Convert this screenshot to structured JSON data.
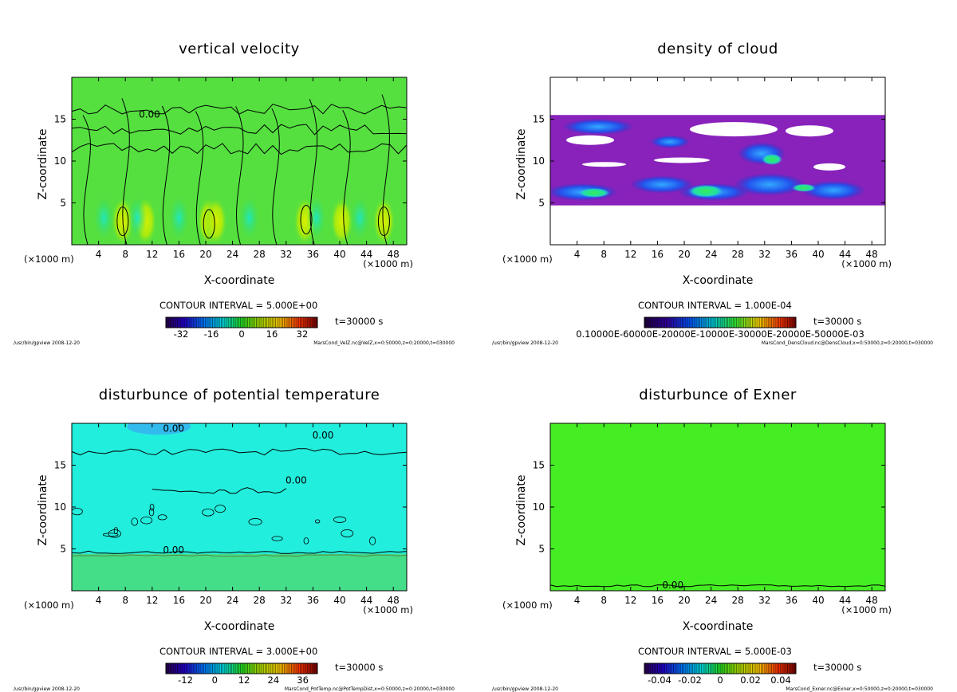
{
  "time_label": "t=30000 s",
  "panels": [
    {
      "title": "vertical velocity",
      "field": "green",
      "x_label": "X-coordinate",
      "z_label": "Z-coordinate",
      "x_ticks": [
        "4",
        "8",
        "12",
        "16",
        "20",
        "24",
        "28",
        "32",
        "36",
        "40",
        "44",
        "48"
      ],
      "z_ticks": [
        "5",
        "10",
        "15"
      ],
      "unit_left": "(×1000 m)",
      "unit_right": "(×1000 m)",
      "contour_interval": "CONTOUR INTERVAL = 5.000E+00",
      "colorbar_labels": [
        "-32",
        "-16",
        "0",
        "16",
        "32"
      ],
      "colorbar_range": [
        -40,
        40
      ],
      "contour_label": "0.00",
      "footer_left": "/usr/bin/gpview  2008-12-20",
      "footer_right": "MarsCond_VelZ.nc@VelZ,x=0:50000,z=0:20000,t=030000"
    },
    {
      "title": "density of cloud",
      "field": "cloud",
      "x_label": "X-coordinate",
      "z_label": "Z-coordinate",
      "x_ticks": [
        "4",
        "8",
        "12",
        "16",
        "20",
        "24",
        "28",
        "32",
        "36",
        "40",
        "44",
        "48"
      ],
      "z_ticks": [
        "5",
        "10",
        "15"
      ],
      "unit_left": "(×1000 m)",
      "unit_right": "(×1000 m)",
      "contour_interval": "CONTOUR INTERVAL = 1.000E-04",
      "colorbar_labels": [
        "0.10000E-60000E-20000E-10000E-30000E-20000E-50000E-03"
      ],
      "colorbar_range": [
        0,
        1
      ],
      "contour_label": "",
      "footer_left": "/usr/bin/gpview  2008-12-20",
      "footer_right": "MarsCond_DensCloud.nc@DensCloud,x=0:50000,z=0:20000,t=030000"
    },
    {
      "title": "disturbunce of potential temperature",
      "field": "cyan",
      "x_label": "X-coordinate",
      "z_label": "Z-coordinate",
      "x_ticks": [
        "4",
        "8",
        "12",
        "16",
        "20",
        "24",
        "28",
        "32",
        "36",
        "40",
        "44",
        "48"
      ],
      "z_ticks": [
        "5",
        "10",
        "15"
      ],
      "unit_left": "(×1000 m)",
      "unit_right": "(×1000 m)",
      "contour_interval": "CONTOUR INTERVAL = 3.000E+00",
      "colorbar_labels": [
        "-12",
        "0",
        "12",
        "24",
        "36"
      ],
      "colorbar_range": [
        -20,
        42
      ],
      "contour_label": "0.00",
      "footer_left": "/usr/bin/gpview  2008-12-20",
      "footer_right": "MarsCond_PotTemp.nc@PotTempDist,x=0:50000,z=0:20000,t=030000"
    },
    {
      "title": "disturbunce of Exner",
      "field": "flatgreen",
      "x_label": "X-coordinate",
      "z_label": "Z-coordinate",
      "x_ticks": [
        "4",
        "8",
        "12",
        "16",
        "20",
        "24",
        "28",
        "32",
        "36",
        "40",
        "44",
        "48"
      ],
      "z_ticks": [
        "5",
        "10",
        "15"
      ],
      "unit_left": "(×1000 m)",
      "unit_right": "(×1000 m)",
      "contour_interval": "CONTOUR INTERVAL = 5.000E-03",
      "colorbar_labels": [
        "-0.04",
        "-0.02",
        "0",
        "0.02",
        "0.04"
      ],
      "colorbar_range": [
        -0.05,
        0.05
      ],
      "contour_label": "0.00",
      "footer_left": "/usr/bin/gpview  2008-12-20",
      "footer_right": "MarsCond_Exner.nc@Exner,x=0:50000,z=0:20000,t=030000"
    }
  ],
  "chart_data": [
    {
      "type": "heatmap",
      "title": "vertical velocity",
      "xlabel": "X-coordinate",
      "ylabel": "Z-coordinate",
      "xlim": [
        0,
        50
      ],
      "ylim": [
        0,
        20
      ],
      "x_ticks": [
        4,
        8,
        12,
        16,
        20,
        24,
        28,
        32,
        36,
        40,
        44,
        48
      ],
      "y_ticks": [
        5,
        10,
        15
      ],
      "x_unit": "(×1000 m)",
      "y_unit": "(×1000 m)",
      "contour_interval": 5.0,
      "colorbar": {
        "ticks": [
          -32,
          -16,
          0,
          16,
          32
        ],
        "range": [
          -40,
          40
        ]
      },
      "annotations": [
        "0.00"
      ]
    },
    {
      "type": "heatmap",
      "title": "density of cloud",
      "xlabel": "X-coordinate",
      "ylabel": "Z-coordinate",
      "xlim": [
        0,
        50
      ],
      "ylim": [
        0,
        20
      ],
      "x_ticks": [
        4,
        8,
        12,
        16,
        20,
        24,
        28,
        32,
        36,
        40,
        44,
        48
      ],
      "y_ticks": [
        5,
        10,
        15
      ],
      "x_unit": "(×1000 m)",
      "y_unit": "(×1000 m)",
      "contour_interval": 0.0001,
      "colorbar": {
        "ticks": [
          "0.10000E-60000E-20000E-10000E-30000E-20000E-50000E-03"
        ]
      },
      "cloud_layer_z_range": [
        5,
        15.5
      ]
    },
    {
      "type": "heatmap",
      "title": "disturbunce of potential temperature",
      "xlabel": "X-coordinate",
      "ylabel": "Z-coordinate",
      "xlim": [
        0,
        50
      ],
      "ylim": [
        0,
        20
      ],
      "x_ticks": [
        4,
        8,
        12,
        16,
        20,
        24,
        28,
        32,
        36,
        40,
        44,
        48
      ],
      "y_ticks": [
        5,
        10,
        15
      ],
      "x_unit": "(×1000 m)",
      "y_unit": "(×1000 m)",
      "contour_interval": 3.0,
      "colorbar": {
        "ticks": [
          -12,
          0,
          12,
          24,
          36
        ],
        "range": [
          -20,
          42
        ]
      },
      "annotations": [
        "0.00"
      ]
    },
    {
      "type": "heatmap",
      "title": "disturbunce of Exner",
      "xlabel": "X-coordinate",
      "ylabel": "Z-coordinate",
      "xlim": [
        0,
        50
      ],
      "ylim": [
        0,
        20
      ],
      "x_ticks": [
        4,
        8,
        12,
        16,
        20,
        24,
        28,
        32,
        36,
        40,
        44,
        48
      ],
      "y_ticks": [
        5,
        10,
        15
      ],
      "x_unit": "(×1000 m)",
      "y_unit": "(×1000 m)",
      "contour_interval": 0.005,
      "colorbar": {
        "ticks": [
          -0.04,
          -0.02,
          0,
          0.02,
          0.04
        ],
        "range": [
          -0.05,
          0.05
        ]
      },
      "annotations": [
        "0.00"
      ]
    }
  ]
}
